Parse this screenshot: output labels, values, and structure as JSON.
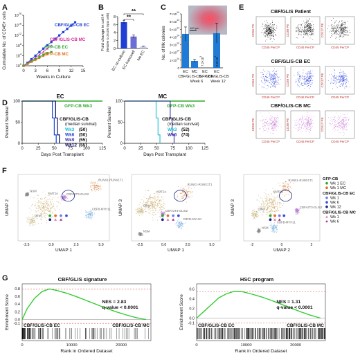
{
  "panels": {
    "A": {
      "letter": "A",
      "chart_data": {
        "type": "line",
        "ylabel": "Cumulative No. of CD45+ cells",
        "xlabel": "Weeks in Culture",
        "x_ticks": [
          "0",
          "3",
          "6",
          "9",
          "12",
          "15"
        ],
        "y_ticks": [
          "10^0",
          "10^4",
          "10^8",
          "10^12",
          "10^16",
          "10^20"
        ],
        "xlim": [
          0,
          15
        ],
        "ylog_exp_range": [
          0,
          20
        ],
        "series": [
          {
            "name": "CBF/GLIS-CB EC",
            "color": "#1f3fd6",
            "marker": "square",
            "x": [
              0,
              1,
              2,
              3,
              4,
              5,
              6,
              7,
              8,
              9,
              10,
              11,
              12,
              13
            ],
            "yexp": [
              0,
              1.2,
              2.6,
              4.0,
              5.4,
              6.8,
              8.1,
              9.4,
              10.7,
              12.0,
              13.3,
              14.6,
              15.9,
              17.2
            ]
          },
          {
            "name": "CBF/GLIS-CB MC",
            "color": "#d6349a",
            "marker": "triangle",
            "x": [
              0,
              1,
              2,
              3,
              4,
              5,
              6,
              7
            ],
            "yexp": [
              0,
              1.0,
              2.1,
              3.2,
              4.4,
              5.6,
              6.8,
              8.0
            ]
          },
          {
            "name": "GFP-CB EC",
            "color": "#2ea82e",
            "marker": "square",
            "x": [
              0,
              1,
              2,
              3,
              4,
              5,
              6,
              7
            ],
            "yexp": [
              0,
              0.8,
              1.7,
              2.6,
              3.5,
              4.4,
              5.0,
              5.4
            ]
          },
          {
            "name": "GFP-CB MC",
            "color": "#e0701c",
            "marker": "triangle",
            "x": [
              0,
              1,
              2,
              3,
              4,
              5,
              6
            ],
            "yexp": [
              0,
              0.7,
              1.5,
              2.3,
              3.1,
              3.9,
              4.5
            ]
          }
        ]
      }
    },
    "B": {
      "letter": "B",
      "chart_data": {
        "type": "bar",
        "ylabel": "Fold change in cell #",
        "ylabel2": "(Relative to 25,000 input cells)",
        "categories": [
          "EC co-culture",
          "EC transwell",
          "No EC"
        ],
        "values": [
          6.6,
          3.0,
          0.5
        ],
        "errors": [
          0.5,
          0.4,
          0.1
        ],
        "colors": [
          "#1f3fd6",
          "#6d6dd6",
          "#c9c9ee"
        ],
        "y_ticks": [
          "0",
          "2",
          "4",
          "6",
          "8"
        ],
        "ylim": [
          0,
          8
        ],
        "significance": [
          "**",
          "**"
        ]
      }
    },
    "C": {
      "letter": "C",
      "chart_data": {
        "type": "bar",
        "ylabel": "No. of Mk colonies",
        "y_ticks": [
          "0",
          "1×10^14",
          "2×10^14",
          "3×10^14",
          "4×10^14",
          "5×10^14",
          "6×10^14",
          "7×10^14"
        ],
        "ylim": [
          0,
          7
        ],
        "categories": [
          "EC",
          "MC",
          "EC",
          "EC"
        ],
        "values": [
          4.4,
          0.9,
          0.0,
          4.5
        ],
        "errors": [
          0.9,
          0.2,
          0,
          1.3
        ],
        "bar_value_labels": [
          "",
          "",
          "7.2×10^3",
          "0.8×10^3"
        ],
        "groups": [
          {
            "name": "CBF/GLIS-CB",
            "week": "Week 6"
          },
          {
            "name": "GFP-CB",
            "week": ""
          },
          {
            "name": "CBF/GLIS-CB",
            "week": "Week 12"
          }
        ],
        "scale_bar": "100 µm"
      }
    },
    "D": {
      "letter": "D",
      "ylabel": "Percent Survival",
      "xlabel": "Days Post Transplant",
      "x_ticks": [
        "0",
        "25",
        "50",
        "75",
        "100",
        "125"
      ],
      "y_ticks": [
        "0",
        "50",
        "100"
      ],
      "charts": [
        {
          "title": "EC",
          "control": "GFP-CB Wk3",
          "legend_title": "CBF/GLIS-CB",
          "legend_subtitle": "(median survival)",
          "series": [
            {
              "name": "Wk3",
              "value": "(50)",
              "color": "#19bfd6",
              "median": 50
            },
            {
              "name": "Wk6",
              "value": "(50)",
              "color": "#1f3fd6",
              "median": 50
            },
            {
              "name": "Wk9",
              "value": "(55)",
              "color": "#3a2fa8",
              "median": 55
            },
            {
              "name": "Wk12",
              "value": "(55)",
              "color": "#111166",
              "median": 55
            }
          ]
        },
        {
          "title": "MC",
          "control": "GFP-CB Wk3",
          "legend_title": "CBF/GLIS-CB",
          "legend_subtitle": "(median survival)",
          "series": [
            {
              "name": "Wk3",
              "value": "(52)",
              "color": "#19bfd6",
              "median": 52
            },
            {
              "name": "Wk6",
              "value": "(74)",
              "color": "#3a2fa8",
              "median": 74
            }
          ]
        }
      ]
    },
    "E": {
      "letter": "E",
      "rows": [
        {
          "title": "CBF/GLIS Patient",
          "color": "#111111"
        },
        {
          "title": "CBF/GLIS-CB EC",
          "color": "#2a3fe0"
        },
        {
          "title": "CBF/GLIS-CB MC",
          "color": "#c77ad6"
        }
      ],
      "y_labels": [
        "CD56 PE",
        "CD38 PE",
        "CD117 PE"
      ],
      "x_label": "CD45 PerCP"
    },
    "F": {
      "letter": "F",
      "plots": [
        {
          "xlabel": "UMAP 1",
          "ylabel": "UMAP 2",
          "x_ticks": [
            "-2.5",
            "0.0",
            "2.5",
            "5.0"
          ]
        },
        {
          "xlabel": "UMAP 1",
          "ylabel": "UMAP 3",
          "x_ticks": [
            "-2.5",
            "0.0",
            "2.5",
            "5.0"
          ]
        },
        {
          "xlabel": "UMAP 2",
          "ylabel": "UMAP 3",
          "x_ticks": [
            "-2",
            "0",
            "2"
          ]
        }
      ],
      "cluster_labels": [
        "RUNX1-RUNX1T1",
        "KMT2A",
        "CBFB-MYH11",
        "CBFA2T3-GLIS2",
        "NSM",
        "Other"
      ],
      "legend": [
        {
          "group": "GFP-CB",
          "items": [
            {
              "label": "Wk 1 EC",
              "color": "#2ea82e",
              "marker": "circle"
            },
            {
              "label": "Wk 1 MC",
              "color": "#e0701c",
              "marker": "circle"
            }
          ]
        },
        {
          "group": "CBF/GLIS-CB EC",
          "items": [
            {
              "label": "Wk 1",
              "color": "#6d7df0",
              "marker": "circle"
            },
            {
              "label": "Wk 6",
              "color": "#3a4fd6",
              "marker": "circle"
            },
            {
              "label": "Wk 12",
              "color": "#1a237e",
              "marker": "circle"
            }
          ]
        },
        {
          "group": "CBF/GLIS-CB MC",
          "items": [
            {
              "label": "Wk 1",
              "color": "#e06bb3",
              "marker": "triangle"
            },
            {
              "label": "Wk 6",
              "color": "#a2238a",
              "marker": "triangle"
            }
          ]
        }
      ]
    },
    "G": {
      "letter": "G",
      "ylabel": "Enrichment Score",
      "xlabel": "Rank in Ordered Dataset",
      "x_ticks": [
        "0",
        "10000",
        "20000"
      ],
      "charts": [
        {
          "chart_data": {
            "type": "line",
            "title": "CBF/GLIS signature",
            "nes": "NES = 2.83",
            "q": "q-value < 0.0001",
            "left_label": "CBF/GLIS-CB EC",
            "right_label": "CBF/GLIS-CB MC",
            "y_ticks": [
              "0.8",
              "0.6",
              "0.4",
              "0.2",
              "0.0",
              "-0.1"
            ],
            "ylim": [
              -0.15,
              0.85
            ],
            "xlim": [
              0,
              26000
            ],
            "x": [
              0,
              1000,
              2500,
              4000,
              5500,
              7000,
              9000,
              11000,
              13000,
              15000,
              17000,
              19000,
              21000,
              23000,
              25000
            ],
            "y": [
              0,
              0.28,
              0.55,
              0.72,
              0.79,
              0.75,
              0.68,
              0.59,
              0.49,
              0.39,
              0.29,
              0.2,
              0.12,
              0.05,
              0
            ]
          }
        },
        {
          "chart_data": {
            "type": "line",
            "title": "HSC program",
            "nes": "NES = 1.31",
            "q": "q-value < 0.0001",
            "left_label": "CBF/GLIS-CB EC",
            "right_label": "CBF/GLIS-CB MC",
            "y_ticks": [
              "0.6",
              "0.4",
              "0.2",
              "0.0",
              "-0.1"
            ],
            "ylim": [
              -0.15,
              0.65
            ],
            "xlim": [
              0,
              26000
            ],
            "x": [
              0,
              1500,
              3000,
              4500,
              6000,
              7500,
              9000,
              11000,
              13000,
              15000,
              17000,
              19000,
              21000,
              23000,
              25000
            ],
            "y": [
              0,
              0.14,
              0.28,
              0.42,
              0.5,
              0.55,
              0.55,
              0.5,
              0.44,
              0.37,
              0.29,
              0.21,
              0.13,
              0.06,
              0
            ]
          }
        }
      ]
    }
  }
}
